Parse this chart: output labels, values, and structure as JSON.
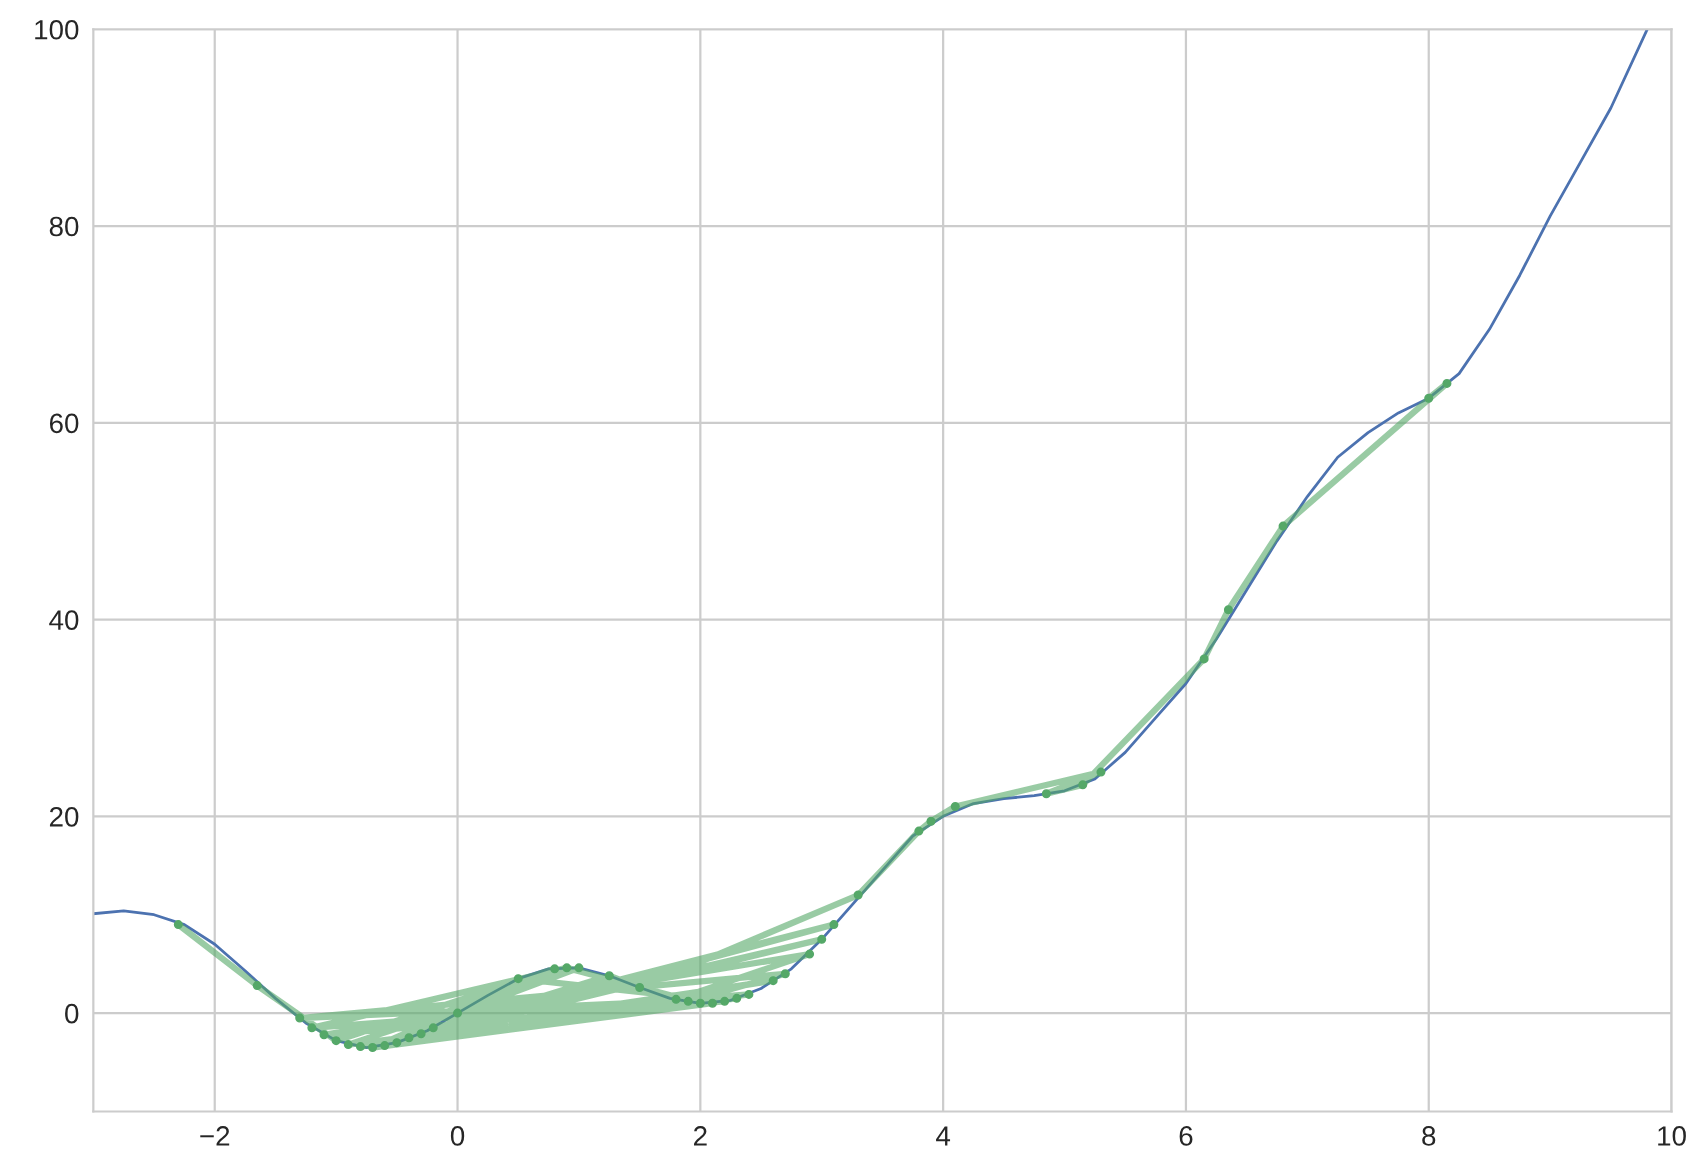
{
  "chart_data": {
    "type": "line",
    "xlim": [
      -3,
      10
    ],
    "ylim": [
      -10,
      100
    ],
    "xticks": [
      {
        "value": -2,
        "label": "−2"
      },
      0,
      2,
      4,
      6,
      8,
      10
    ],
    "yticks": [
      0,
      20,
      40,
      60,
      80,
      100
    ],
    "grid": true,
    "series": [
      {
        "color": "#4c72b0",
        "marker": "none",
        "x": [
          -3,
          -2.75,
          -2.5,
          -2.25,
          -2,
          -1.75,
          -1.5,
          -1.25,
          -1,
          -0.75,
          -0.5,
          -0.25,
          0,
          0.25,
          0.5,
          0.75,
          1,
          1.25,
          1.5,
          1.75,
          2,
          2.25,
          2.5,
          2.75,
          3,
          3.25,
          3.5,
          3.75,
          4,
          4.25,
          4.5,
          4.75,
          5,
          5.25,
          5.5,
          5.75,
          6,
          6.25,
          6.5,
          6.75,
          7,
          7.25,
          7.5,
          7.75,
          8,
          8.25,
          8.5,
          8.75,
          9,
          9.25,
          9.5,
          9.8
        ],
        "values": [
          10.1,
          10.4,
          10,
          9,
          7,
          4.3,
          1.5,
          -1,
          -2.8,
          -3.5,
          -3,
          -1.8,
          0,
          1.8,
          3.5,
          4.5,
          4.6,
          3.8,
          2.6,
          1.5,
          1,
          1.3,
          2.5,
          4.5,
          7.5,
          11,
          14.5,
          18,
          20,
          21.3,
          21.8,
          22.1,
          22.6,
          23.8,
          26.5,
          30,
          33.5,
          38,
          43,
          48,
          52.5,
          56.5,
          59,
          61,
          62.5,
          65,
          69.5,
          75,
          81,
          86.5,
          92,
          100
        ]
      },
      {
        "color": "#55a868",
        "marker": "circle",
        "x": [
          -2.3,
          -1.65,
          -1.0,
          0.8,
          -0.7,
          2.1,
          0.0,
          1.0,
          -0.9,
          2.4,
          -1.2,
          0.9,
          2.0,
          -0.5,
          3.0,
          -0.8,
          2.6,
          -0.3,
          1.8,
          2.9,
          -1.1,
          2.2,
          0.5,
          -0.6,
          3.1,
          -0.2,
          1.9,
          2.7,
          -1.3,
          2.3,
          -0.4,
          1.25,
          1.5,
          3.3,
          3.8,
          3.9,
          4.1,
          5.3,
          4.85,
          5.15,
          6.15,
          6.35,
          6.8,
          8.15,
          8.0
        ],
        "values": [
          9.0,
          2.8,
          -2.8,
          4.5,
          -3.5,
          1.0,
          0,
          4.6,
          -3.2,
          1.9,
          -1.5,
          4.6,
          1.0,
          -3.0,
          7.5,
          -3.4,
          3.3,
          -2.1,
          1.4,
          6,
          -2.2,
          1.2,
          3.5,
          -3.3,
          9,
          -1.5,
          1.2,
          4.0,
          -0.5,
          1.5,
          -2.5,
          3.8,
          2.6,
          12,
          18.5,
          19.5,
          21,
          24.5,
          22.3,
          23.2,
          36,
          41,
          49.5,
          64,
          62.5
        ]
      }
    ]
  }
}
